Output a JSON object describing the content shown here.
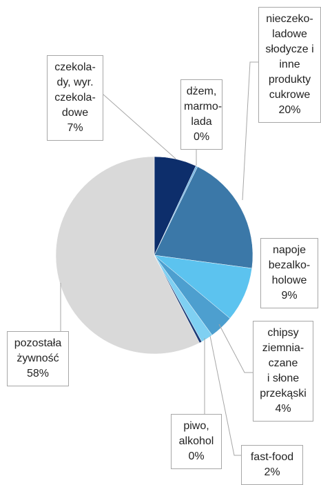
{
  "chart_data": {
    "type": "pie",
    "categories": [
      "czekola-\ndy, wyr.\nczekola-\ndowe",
      "dżem,\nmarmo-\nlada",
      "nieczeko-\nladowe\nsłodycze i\ninne\nprodukty\ncukrowe",
      "napoje\nbezalko-\nholowe",
      "chipsy\nziemnia-\nczane\ni słone\nprzekąski",
      "fast-food",
      "piwo,\nalkohol",
      "pozostała\nżywność"
    ],
    "values": [
      7,
      0.3,
      20,
      9,
      4,
      2,
      0.4,
      58
    ],
    "value_labels": [
      "7%",
      "0%",
      "20%",
      "9%",
      "4%",
      "2%",
      "0%",
      "58%"
    ],
    "colors": [
      "#0d2e6b",
      "#6fb3e3",
      "#3b78a8",
      "#5cc3ef",
      "#4d9fcf",
      "#7fd0f2",
      "#1d3d78",
      "#d9d9d9"
    ]
  }
}
